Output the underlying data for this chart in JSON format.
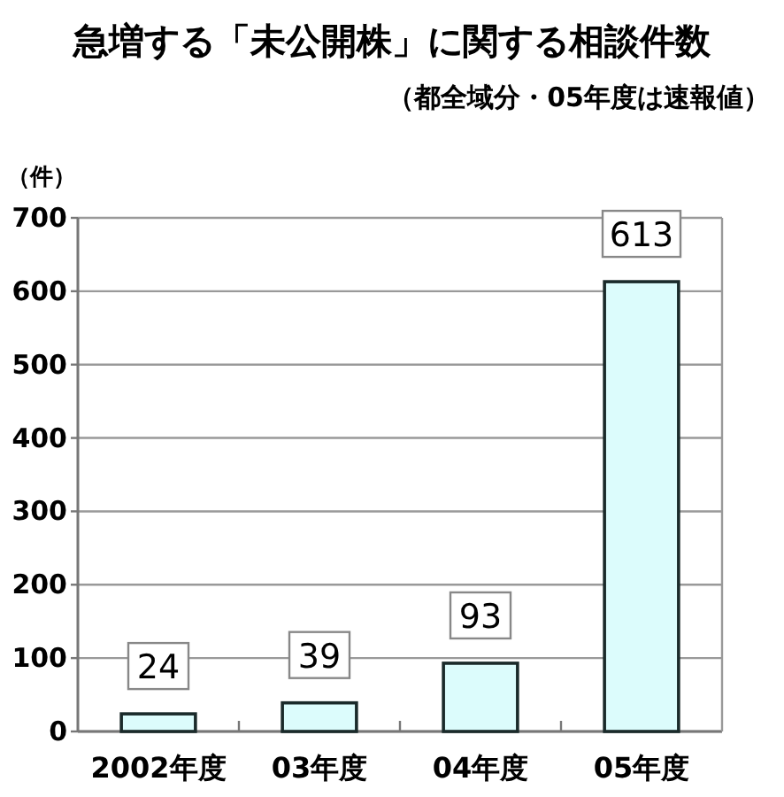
{
  "chart_data": {
    "type": "bar",
    "title": "急増する「未公開株」に関する相談件数",
    "subtitle": "（都全域分・05年度は速報値）",
    "ylabel": "（件）",
    "categories": [
      "2002年度",
      "03年度",
      "04年度",
      "05年度"
    ],
    "values": [
      24,
      39,
      93,
      613
    ],
    "color": "#dcfcfc",
    "ylim": [
      0,
      700
    ],
    "yticks": [
      0,
      100,
      200,
      300,
      400,
      500,
      600,
      700
    ],
    "grid": "y",
    "data_labels": true
  }
}
